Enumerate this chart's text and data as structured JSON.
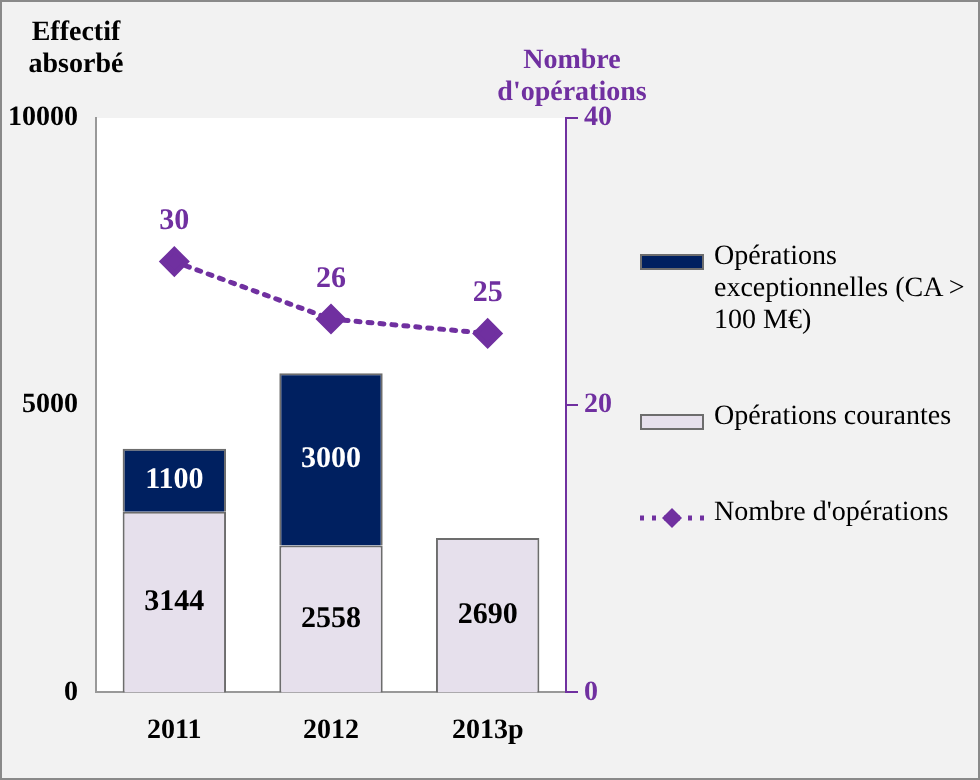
{
  "chart_data": {
    "type": "bar",
    "stacked": true,
    "ylabel": "Effectif absorbé",
    "y2label": "Nombre d'opérations",
    "categories": [
      "2011",
      "2012",
      "2013p"
    ],
    "series": [
      {
        "name": "Opérations courantes",
        "color": "#e6e0ec",
        "values": [
          3144,
          2558,
          2690
        ]
      },
      {
        "name": "Opérations exceptionnelles (CA > 100 M€)",
        "color": "#002060",
        "values": [
          1100,
          3000,
          null
        ]
      },
      {
        "name": "Nombre d'opérations",
        "type": "line",
        "axis": "y2",
        "color": "#7030a0",
        "values": [
          30,
          26,
          25
        ],
        "marker": "diamond",
        "line_style": "dotted"
      }
    ],
    "ylim": [
      0,
      10000
    ],
    "yticks": [
      0,
      5000,
      10000
    ],
    "y2lim": [
      0,
      40
    ],
    "y2ticks": [
      0,
      20,
      40
    ],
    "data_labels": true,
    "grid": false,
    "legend": "right"
  }
}
